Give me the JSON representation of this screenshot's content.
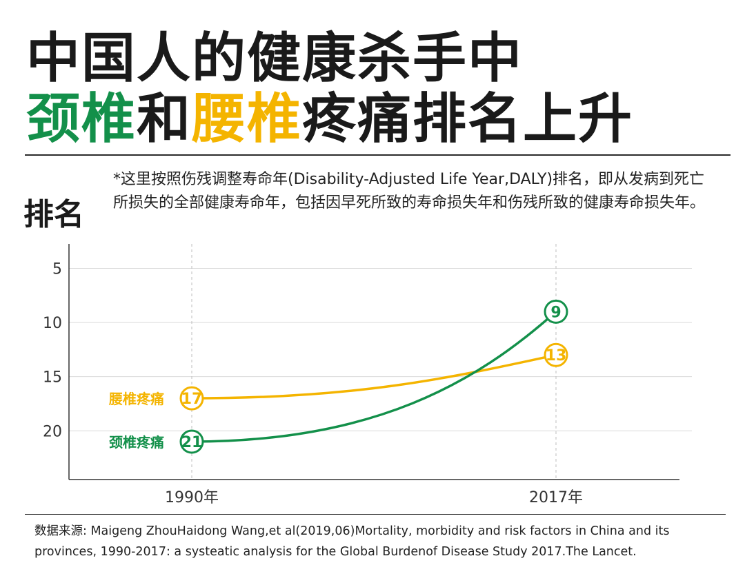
{
  "header": {
    "title_line1": "中国人的健康杀手中",
    "title_line2_part1": "颈椎",
    "title_line2_part2": "和",
    "title_line2_part3": "腰椎",
    "title_line2_part4": "疼痛排名上升"
  },
  "rank_label": "排名",
  "note": "*这里按照伤残调整寿命年(Disability-Adjusted Life Year,DALY)排名，即从发病到死亡所损失的全部健康寿命年，包括因早死所致的寿命损失年和伤残所致的健康寿命损失年。",
  "source": "数据来源: Maigeng ZhouHaidong Wang,et al(2019,06)Mortality, morbidity and risk factors in China and its provinces, 1990-2017: a systeatic analysis for the Global Burdenof Disease Study 2017.The Lancet.",
  "colors": {
    "cervical": "#13904a",
    "lumbar": "#f4b400",
    "grid": "#d9d9d9",
    "axis": "#333333"
  },
  "chart_data": {
    "type": "line",
    "x": [
      "1990年",
      "2017年"
    ],
    "y_tick_labels": [
      "5",
      "10",
      "15",
      "20"
    ],
    "y_ticks": [
      5,
      10,
      15,
      20
    ],
    "ylim": [
      3,
      24.5
    ],
    "y_inverted": true,
    "grid": true,
    "series": [
      {
        "name": "腰椎疼痛",
        "values": [
          17,
          13
        ],
        "labels": [
          "17",
          "13"
        ],
        "color": "#f4b400"
      },
      {
        "name": "颈椎疼痛",
        "values": [
          21,
          9
        ],
        "labels": [
          "21",
          "9"
        ],
        "color": "#13904a"
      }
    ]
  }
}
